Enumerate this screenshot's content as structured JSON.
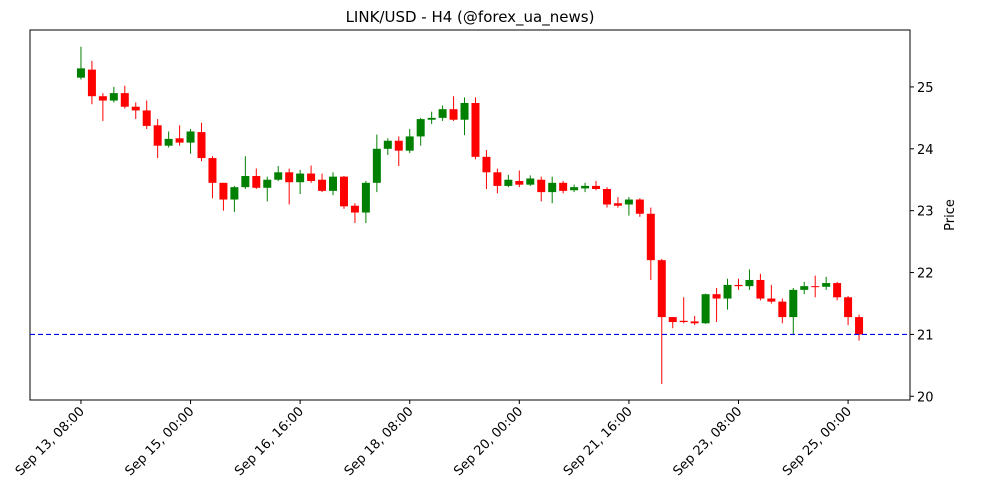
{
  "chart_data": {
    "type": "candlestick",
    "title": "LINK/USD - H4 (@forex_ua_news)",
    "ylabel": "Price",
    "x": [
      "Sep 13, 08:00",
      "Sep 13, 12:00",
      "Sep 13, 16:00",
      "Sep 13, 20:00",
      "Sep 14, 00:00",
      "Sep 14, 04:00",
      "Sep 14, 08:00",
      "Sep 14, 12:00",
      "Sep 14, 16:00",
      "Sep 14, 20:00",
      "Sep 15, 00:00",
      "Sep 15, 04:00",
      "Sep 15, 08:00",
      "Sep 15, 12:00",
      "Sep 15, 16:00",
      "Sep 15, 20:00",
      "Sep 16, 00:00",
      "Sep 16, 04:00",
      "Sep 16, 08:00",
      "Sep 16, 12:00",
      "Sep 16, 16:00",
      "Sep 16, 20:00",
      "Sep 17, 00:00",
      "Sep 17, 04:00",
      "Sep 17, 08:00",
      "Sep 17, 12:00",
      "Sep 17, 16:00",
      "Sep 17, 20:00",
      "Sep 18, 00:00",
      "Sep 18, 04:00",
      "Sep 18, 08:00",
      "Sep 18, 12:00",
      "Sep 18, 16:00",
      "Sep 18, 20:00",
      "Sep 19, 00:00",
      "Sep 19, 04:00",
      "Sep 19, 08:00",
      "Sep 19, 12:00",
      "Sep 19, 16:00",
      "Sep 19, 20:00",
      "Sep 20, 00:00",
      "Sep 20, 04:00",
      "Sep 20, 08:00",
      "Sep 20, 12:00",
      "Sep 20, 16:00",
      "Sep 20, 20:00",
      "Sep 21, 00:00",
      "Sep 21, 04:00",
      "Sep 21, 08:00",
      "Sep 21, 12:00",
      "Sep 21, 16:00",
      "Sep 21, 20:00",
      "Sep 22, 00:00",
      "Sep 22, 04:00",
      "Sep 22, 08:00",
      "Sep 22, 12:00",
      "Sep 22, 16:00",
      "Sep 22, 20:00",
      "Sep 23, 00:00",
      "Sep 23, 04:00",
      "Sep 23, 08:00",
      "Sep 23, 12:00",
      "Sep 23, 16:00",
      "Sep 23, 20:00",
      "Sep 24, 00:00",
      "Sep 24, 04:00",
      "Sep 24, 08:00",
      "Sep 24, 12:00",
      "Sep 24, 16:00",
      "Sep 24, 20:00",
      "Sep 25, 00:00",
      "Sep 25, 04:00"
    ],
    "open": [
      25.15,
      25.28,
      24.85,
      24.78,
      24.9,
      24.68,
      24.62,
      24.38,
      24.05,
      24.17,
      24.1,
      24.27,
      23.85,
      23.45,
      23.18,
      23.38,
      23.56,
      23.37,
      23.5,
      23.62,
      23.46,
      23.6,
      23.5,
      23.32,
      23.55,
      23.08,
      22.97,
      23.45,
      24.0,
      24.13,
      23.97,
      24.2,
      24.47,
      24.5,
      24.64,
      24.47,
      24.74,
      23.87,
      23.62,
      23.4,
      23.48,
      23.42,
      23.5,
      23.3,
      23.45,
      23.33,
      23.36,
      23.4,
      23.35,
      23.12,
      23.1,
      23.18,
      22.95,
      22.2,
      21.28,
      21.22,
      21.21,
      21.18,
      21.65,
      21.58,
      21.8,
      21.78,
      21.88,
      21.58,
      21.53,
      21.28,
      21.72,
      21.78,
      21.77,
      21.83,
      21.6,
      21.28
    ],
    "high": [
      25.65,
      25.42,
      24.9,
      25.0,
      25.02,
      24.75,
      24.78,
      24.48,
      24.28,
      24.38,
      24.32,
      24.42,
      23.88,
      23.45,
      23.4,
      23.88,
      23.68,
      23.55,
      23.72,
      23.68,
      23.66,
      23.73,
      23.6,
      23.62,
      23.56,
      23.12,
      23.48,
      24.23,
      24.17,
      24.2,
      24.32,
      24.5,
      24.6,
      24.7,
      24.85,
      24.83,
      24.83,
      23.98,
      23.68,
      23.58,
      23.65,
      23.57,
      23.55,
      23.55,
      23.48,
      23.42,
      23.45,
      23.48,
      23.38,
      23.22,
      23.22,
      23.2,
      23.05,
      22.22,
      21.28,
      21.6,
      21.3,
      21.66,
      21.75,
      21.9,
      21.9,
      22.05,
      21.98,
      21.8,
      21.58,
      21.75,
      21.85,
      21.95,
      21.93,
      21.85,
      21.62,
      21.32
    ],
    "low": [
      25.12,
      24.72,
      24.45,
      24.75,
      24.65,
      24.48,
      24.32,
      23.85,
      24.02,
      24.05,
      23.92,
      23.8,
      23.2,
      23.0,
      22.98,
      23.35,
      23.35,
      23.15,
      23.48,
      23.1,
      23.27,
      23.45,
      23.3,
      23.25,
      23.03,
      22.8,
      22.8,
      23.3,
      23.9,
      23.72,
      23.93,
      24.05,
      24.4,
      24.45,
      24.45,
      24.22,
      23.83,
      23.35,
      23.28,
      23.38,
      23.38,
      23.4,
      23.15,
      23.12,
      23.28,
      23.3,
      23.3,
      23.33,
      23.05,
      23.05,
      22.92,
      22.9,
      21.88,
      20.2,
      21.1,
      21.18,
      21.15,
      21.17,
      21.2,
      21.4,
      21.72,
      21.72,
      21.55,
      21.5,
      21.18,
      21.0,
      21.65,
      21.6,
      21.72,
      21.55,
      21.15,
      20.9
    ],
    "close": [
      25.3,
      24.85,
      24.78,
      24.9,
      24.68,
      24.62,
      24.37,
      24.05,
      24.16,
      24.1,
      24.28,
      23.85,
      23.45,
      23.18,
      23.38,
      23.56,
      23.37,
      23.5,
      23.62,
      23.46,
      23.6,
      23.48,
      23.32,
      23.55,
      23.07,
      22.97,
      23.45,
      24.0,
      24.13,
      23.97,
      24.2,
      24.48,
      24.5,
      24.64,
      24.47,
      24.74,
      23.87,
      23.62,
      23.4,
      23.5,
      23.42,
      23.52,
      23.3,
      23.45,
      23.32,
      23.38,
      23.4,
      23.35,
      23.1,
      23.08,
      23.18,
      22.95,
      22.2,
      21.28,
      21.2,
      21.2,
      21.18,
      21.65,
      21.58,
      21.8,
      21.78,
      21.88,
      21.58,
      21.53,
      21.28,
      21.72,
      21.78,
      21.77,
      21.83,
      21.6,
      21.28,
      21.0
    ],
    "up_color": "green",
    "down_color": "red",
    "hlines": [
      {
        "value": 21,
        "color": "blue",
        "style": "dashed"
      }
    ],
    "ylim": [
      19.94,
      25.92
    ],
    "yticks": [
      20,
      21,
      22,
      23,
      24,
      25
    ],
    "xticks": [
      "Sep 13, 08:00",
      "Sep 15, 00:00",
      "Sep 16, 16:00",
      "Sep 18, 08:00",
      "Sep 20, 00:00",
      "Sep 21, 16:00",
      "Sep 23, 08:00",
      "Sep 25, 00:00"
    ]
  }
}
